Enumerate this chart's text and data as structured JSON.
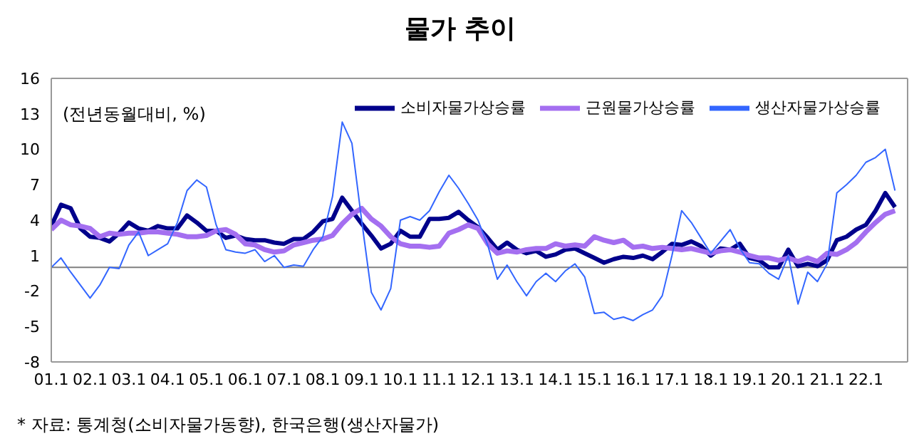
{
  "chart_data": {
    "type": "line",
    "title": "물가 추이",
    "ylabel": "(전년동월대비, %)",
    "categories": [
      "01.1",
      null,
      null,
      null,
      "02.1",
      null,
      null,
      null,
      "03.1",
      null,
      null,
      null,
      "04.1",
      null,
      null,
      null,
      "05.1",
      null,
      null,
      null,
      "06.1",
      null,
      null,
      null,
      "07.1",
      null,
      null,
      null,
      "08.1",
      null,
      null,
      null,
      "09.1",
      null,
      null,
      null,
      "10.1",
      null,
      null,
      null,
      "11.1",
      null,
      null,
      null,
      "12.1",
      null,
      null,
      null,
      "13.1",
      null,
      null,
      null,
      "14.1",
      null,
      null,
      null,
      "15.1",
      null,
      null,
      null,
      "16.1",
      null,
      null,
      null,
      "17.1",
      null,
      null,
      null,
      "18.1",
      null,
      null,
      null,
      "19.1",
      null,
      null,
      null,
      "20.1",
      null,
      null,
      null,
      "21.1",
      null,
      null,
      null,
      "22.1",
      null,
      null,
      null
    ],
    "series": [
      {
        "name": "소비자물가상승률",
        "color": "#00008b",
        "values": [
          3.5,
          5.3,
          5.0,
          3.3,
          2.6,
          2.5,
          2.2,
          2.9,
          3.8,
          3.3,
          3.1,
          3.5,
          3.3,
          3.3,
          4.4,
          3.8,
          3.1,
          3.1,
          2.5,
          2.7,
          2.4,
          2.3,
          2.3,
          2.1,
          2.0,
          2.4,
          2.4,
          3.0,
          3.9,
          4.1,
          5.9,
          4.8,
          3.7,
          2.7,
          1.6,
          2.0,
          3.1,
          2.6,
          2.6,
          4.1,
          4.1,
          4.2,
          4.7,
          4.0,
          3.4,
          2.5,
          1.5,
          2.1,
          1.5,
          1.2,
          1.4,
          0.9,
          1.1,
          1.5,
          1.6,
          1.2,
          0.8,
          0.4,
          0.7,
          0.9,
          0.8,
          1.0,
          0.7,
          1.3,
          2.0,
          1.9,
          2.2,
          1.8,
          1.0,
          1.6,
          1.5,
          2.0,
          0.8,
          0.6,
          0.0,
          0.0,
          1.5,
          0.1,
          0.3,
          0.1,
          0.6,
          2.3,
          2.6,
          3.2,
          3.6,
          4.8,
          6.3,
          5.1
        ]
      },
      {
        "name": "근원물가상승률",
        "color": "#a46ff0",
        "values": [
          3.2,
          4.0,
          3.6,
          3.5,
          3.3,
          2.6,
          2.9,
          2.8,
          2.9,
          2.9,
          3.0,
          3.0,
          2.9,
          2.8,
          2.6,
          2.6,
          2.7,
          3.1,
          3.2,
          2.8,
          2.0,
          1.9,
          1.5,
          1.3,
          1.4,
          1.9,
          2.1,
          2.3,
          2.4,
          2.7,
          3.7,
          4.5,
          5.0,
          4.1,
          3.5,
          2.6,
          2.0,
          1.8,
          1.8,
          1.7,
          1.8,
          2.9,
          3.2,
          3.6,
          3.3,
          2.0,
          1.2,
          1.4,
          1.3,
          1.5,
          1.6,
          1.6,
          2.0,
          1.8,
          1.9,
          1.8,
          2.6,
          2.3,
          2.1,
          2.3,
          1.7,
          1.8,
          1.6,
          1.7,
          1.6,
          1.5,
          1.6,
          1.4,
          1.2,
          1.4,
          1.5,
          1.3,
          1.0,
          0.8,
          0.8,
          0.6,
          0.8,
          0.5,
          0.8,
          0.5,
          1.2,
          1.1,
          1.5,
          2.1,
          3.0,
          3.8,
          4.5,
          4.8
        ]
      },
      {
        "name": "생산자물가상승률",
        "color": "#3366ff",
        "values": [
          0.0,
          0.8,
          -0.4,
          -1.5,
          -2.6,
          -1.5,
          0.0,
          -0.1,
          1.9,
          3.0,
          1.0,
          1.5,
          2.0,
          3.8,
          6.5,
          7.4,
          6.8,
          3.6,
          1.5,
          1.3,
          1.2,
          1.5,
          0.5,
          1.0,
          0.0,
          0.2,
          0.1,
          1.5,
          2.6,
          6.0,
          12.3,
          10.5,
          4.0,
          -2.1,
          -3.6,
          -1.8,
          4.0,
          4.3,
          4.0,
          4.8,
          6.4,
          7.8,
          6.7,
          5.4,
          4.0,
          1.9,
          -1.0,
          0.2,
          -1.2,
          -2.4,
          -1.2,
          -0.5,
          -1.2,
          -0.3,
          0.3,
          -0.8,
          -3.9,
          -3.8,
          -4.4,
          -4.2,
          -4.5,
          -4.0,
          -3.6,
          -2.4,
          1.0,
          4.8,
          3.8,
          2.5,
          1.2,
          2.2,
          3.2,
          1.6,
          0.4,
          0.3,
          -0.5,
          -1.0,
          1.0,
          -3.1,
          -0.4,
          -1.2,
          0.3,
          6.3,
          7.0,
          7.8,
          8.9,
          9.3,
          10.0,
          6.5
        ]
      }
    ],
    "ylim": [
      -8,
      16
    ],
    "yticks": [
      -8,
      -5,
      -2,
      1,
      4,
      7,
      10,
      13,
      16
    ],
    "ref_lines": [
      {
        "axis": "y",
        "value": 0,
        "color": "#808080"
      }
    ],
    "grid": false,
    "legend": "top right",
    "marker": "none",
    "line_style": "solid",
    "annotations": [
      "* 자료: 통계청(소비자물가동향), 한국은행(생산자물가)"
    ]
  }
}
